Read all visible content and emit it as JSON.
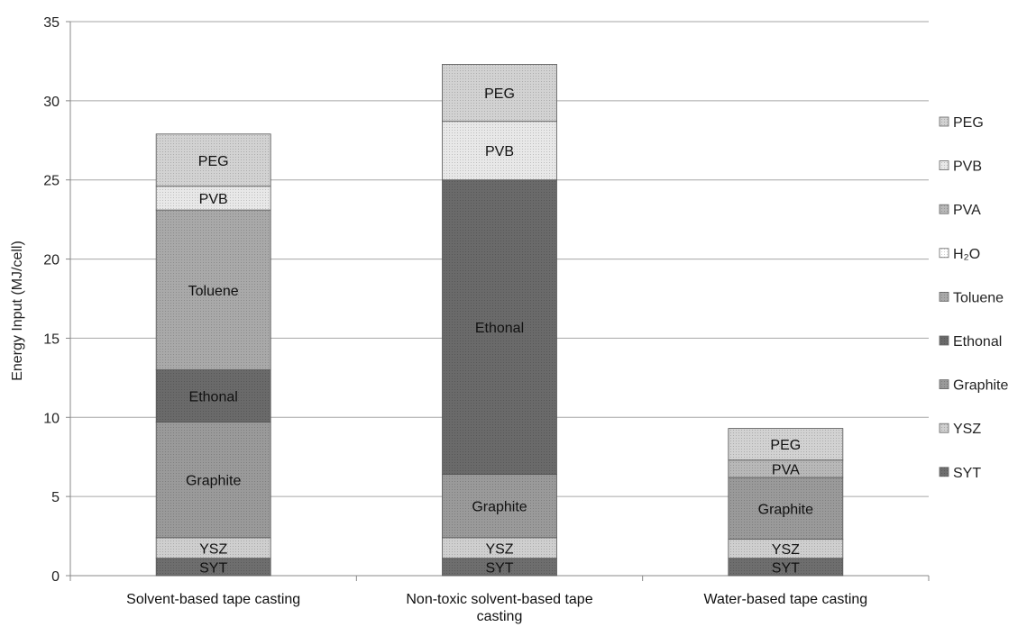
{
  "chart_data": {
    "type": "bar",
    "stacked": true,
    "title": "",
    "xlabel": "",
    "ylabel": "Energy Input (MJ/cell)",
    "ylim": [
      0,
      35
    ],
    "yticks": [
      0,
      5,
      10,
      15,
      20,
      25,
      30,
      35
    ],
    "grid": true,
    "legend_position": "right",
    "categories": [
      [
        "Solvent-based tape casting"
      ],
      [
        "Non-toxic solvent-based tape",
        "casting"
      ],
      [
        "Water-based tape casting"
      ]
    ],
    "series": [
      {
        "name": "SYT",
        "color": "#6e6e6e",
        "values": [
          1.1,
          1.1,
          1.1
        ]
      },
      {
        "name": "YSZ",
        "color": "#cfcfcf",
        "values": [
          1.3,
          1.3,
          1.2
        ]
      },
      {
        "name": "Graphite",
        "color": "#9a9a9a",
        "values": [
          7.3,
          4.0,
          3.9
        ]
      },
      {
        "name": "Ethonal",
        "color": "#6a6a6a",
        "values": [
          3.3,
          18.6,
          0
        ]
      },
      {
        "name": "Toluene",
        "color": "#a9a9a9",
        "values": [
          10.1,
          0,
          0
        ]
      },
      {
        "name": "H₂O",
        "color": "#ffffff",
        "values": [
          0,
          0,
          0
        ]
      },
      {
        "name": "PVA",
        "color": "#b8b8b8",
        "values": [
          0,
          0,
          1.1
        ]
      },
      {
        "name": "PVB",
        "color": "#e8e8e8",
        "values": [
          1.5,
          3.7,
          0
        ]
      },
      {
        "name": "PEG",
        "color": "#d2d2d2",
        "values": [
          3.3,
          3.6,
          2.0
        ]
      }
    ],
    "segment_labels": [
      [
        "SYT",
        "YSZ",
        "Graphite",
        "Ethonal",
        "Toluene",
        "",
        "",
        "PVB",
        "PEG"
      ],
      [
        "SYT",
        "YSZ",
        "Graphite",
        "Ethonal",
        "",
        "",
        "",
        "PVB",
        "PEG"
      ],
      [
        "SYT",
        "YSZ",
        "Graphite",
        "",
        "",
        "",
        "PVA",
        "",
        "PEG"
      ]
    ],
    "legend_order": [
      "PEG",
      "PVB",
      "PVA",
      "H₂O",
      "Toluene",
      "Ethonal",
      "Graphite",
      "YSZ",
      "SYT"
    ]
  }
}
